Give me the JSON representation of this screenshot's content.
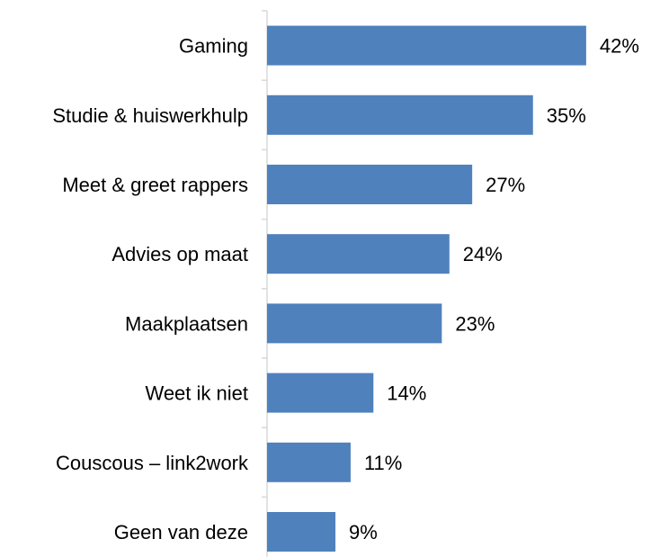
{
  "chart_data": {
    "type": "bar",
    "orientation": "horizontal",
    "categories": [
      "Gaming",
      "Studie & huiswerkhulp",
      "Meet & greet rappers",
      "Advies op maat",
      "Maakplaatsen",
      "Weet ik niet",
      "Couscous – link2work",
      "Geen van deze"
    ],
    "values": [
      42,
      35,
      27,
      24,
      23,
      14,
      11,
      9
    ],
    "value_labels": [
      "42%",
      "35%",
      "27%",
      "24%",
      "23%",
      "14%",
      "11%",
      "9%"
    ],
    "unit": "%",
    "xlim": [
      0,
      45
    ],
    "grid": false,
    "legend": "none",
    "bar_color": "#4F81BD",
    "axis_color": "#D9D9D9"
  }
}
